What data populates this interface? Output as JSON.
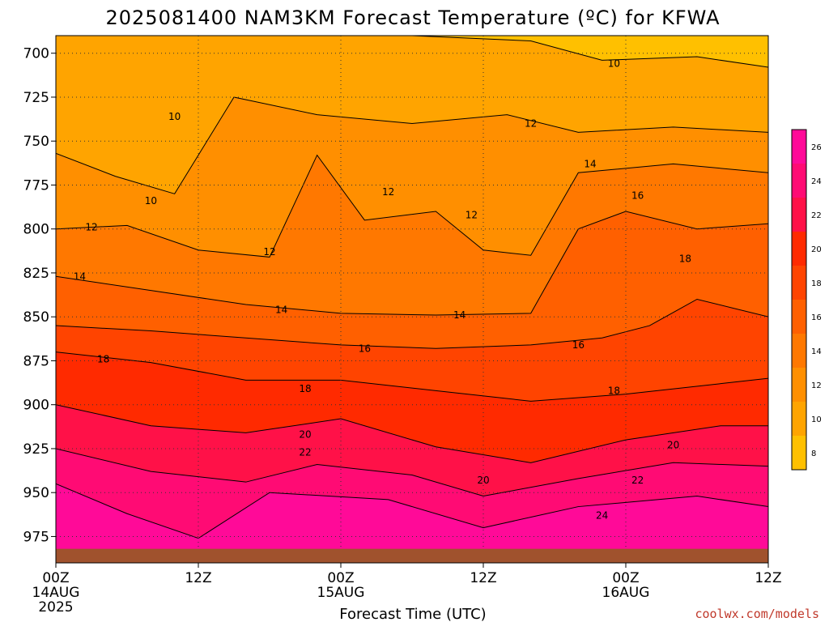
{
  "chart_data": {
    "type": "heatmap",
    "title": "2025081400 NAM3KM Forecast Temperature (ºC) for KFWA",
    "xlabel": "Forecast Time (UTC)",
    "ylabel": "",
    "x_ticks": [
      {
        "hour": 0,
        "label": "00Z",
        "sub": "14AUG",
        "sub2": "2025"
      },
      {
        "hour": 12,
        "label": "12Z",
        "sub": "",
        "sub2": ""
      },
      {
        "hour": 24,
        "label": "00Z",
        "sub": "15AUG",
        "sub2": ""
      },
      {
        "hour": 36,
        "label": "12Z",
        "sub": "",
        "sub2": ""
      },
      {
        "hour": 48,
        "label": "00Z",
        "sub": "16AUG",
        "sub2": ""
      },
      {
        "hour": 60,
        "label": "12Z",
        "sub": "",
        "sub2": ""
      }
    ],
    "xlim": [
      0,
      60
    ],
    "y_ticks": [
      700,
      725,
      750,
      775,
      800,
      825,
      850,
      875,
      900,
      925,
      950,
      975
    ],
    "ylim": [
      990,
      690
    ],
    "ground_level_hpa": 982,
    "grid": true,
    "colorbar": {
      "position": "right",
      "levels": [
        8,
        10,
        12,
        14,
        16,
        18,
        20,
        22,
        24,
        26
      ],
      "colors": [
        "#ffc000",
        "#ffa400",
        "#ff8f00",
        "#ff7800",
        "#ff6000",
        "#ff4400",
        "#ff2a00",
        "#ff1148",
        "#ff0b74",
        "#ff0a98"
      ]
    },
    "contour_labels": [
      {
        "value": "10",
        "hour": 10,
        "p": 736
      },
      {
        "value": "10",
        "hour": 8,
        "p": 784
      },
      {
        "value": "10",
        "hour": 47,
        "p": 706
      },
      {
        "value": "12",
        "hour": 3,
        "p": 799
      },
      {
        "value": "12",
        "hour": 18,
        "p": 813
      },
      {
        "value": "12",
        "hour": 28,
        "p": 779
      },
      {
        "value": "12",
        "hour": 35,
        "p": 792
      },
      {
        "value": "12",
        "hour": 40,
        "p": 740
      },
      {
        "value": "14",
        "hour": 2,
        "p": 827
      },
      {
        "value": "14",
        "hour": 19,
        "p": 846
      },
      {
        "value": "14",
        "hour": 34,
        "p": 849
      },
      {
        "value": "14",
        "hour": 45,
        "p": 763
      },
      {
        "value": "16",
        "hour": 26,
        "p": 868
      },
      {
        "value": "16",
        "hour": 44,
        "p": 866
      },
      {
        "value": "16",
        "hour": 49,
        "p": 781
      },
      {
        "value": "18",
        "hour": 4,
        "p": 874
      },
      {
        "value": "18",
        "hour": 21,
        "p": 891
      },
      {
        "value": "18",
        "hour": 47,
        "p": 892
      },
      {
        "value": "18",
        "hour": 53,
        "p": 817
      },
      {
        "value": "20",
        "hour": 21,
        "p": 917
      },
      {
        "value": "20",
        "hour": 36,
        "p": 943
      },
      {
        "value": "20",
        "hour": 52,
        "p": 923
      },
      {
        "value": "22",
        "hour": 21,
        "p": 927
      },
      {
        "value": "22",
        "hour": 49,
        "p": 943
      },
      {
        "value": "24",
        "hour": 46,
        "p": 963
      }
    ],
    "bands": [
      {
        "level": 10,
        "pts": [
          [
            0,
            690
          ],
          [
            12,
            690
          ],
          [
            20,
            690
          ],
          [
            30,
            690
          ],
          [
            40,
            693
          ],
          [
            46,
            704
          ],
          [
            54,
            702
          ],
          [
            60,
            708
          ]
        ]
      },
      {
        "level": 12,
        "pts": [
          [
            0,
            757
          ],
          [
            5,
            770
          ],
          [
            10,
            780
          ],
          [
            15,
            725
          ],
          [
            22,
            735
          ],
          [
            30,
            740
          ],
          [
            38,
            735
          ],
          [
            44,
            745
          ],
          [
            52,
            742
          ],
          [
            60,
            745
          ]
        ]
      },
      {
        "level": 14,
        "pts": [
          [
            0,
            800
          ],
          [
            6,
            798
          ],
          [
            12,
            812
          ],
          [
            18,
            816
          ],
          [
            22,
            758
          ],
          [
            26,
            795
          ],
          [
            32,
            790
          ],
          [
            36,
            812
          ],
          [
            40,
            815
          ],
          [
            44,
            768
          ],
          [
            52,
            763
          ],
          [
            60,
            768
          ]
        ]
      },
      {
        "level": 16,
        "pts": [
          [
            0,
            827
          ],
          [
            8,
            835
          ],
          [
            16,
            843
          ],
          [
            24,
            848
          ],
          [
            32,
            849
          ],
          [
            40,
            848
          ],
          [
            44,
            800
          ],
          [
            48,
            790
          ],
          [
            54,
            800
          ],
          [
            60,
            797
          ]
        ]
      },
      {
        "level": 18,
        "pts": [
          [
            0,
            855
          ],
          [
            8,
            858
          ],
          [
            16,
            862
          ],
          [
            24,
            866
          ],
          [
            32,
            868
          ],
          [
            40,
            866
          ],
          [
            46,
            862
          ],
          [
            50,
            855
          ],
          [
            54,
            840
          ],
          [
            60,
            850
          ]
        ]
      },
      {
        "level": 20,
        "pts": [
          [
            0,
            870
          ],
          [
            8,
            876
          ],
          [
            16,
            886
          ],
          [
            24,
            886
          ],
          [
            32,
            892
          ],
          [
            40,
            898
          ],
          [
            48,
            894
          ],
          [
            56,
            888
          ],
          [
            60,
            885
          ]
        ]
      },
      {
        "level": 22,
        "pts": [
          [
            0,
            900
          ],
          [
            8,
            912
          ],
          [
            16,
            916
          ],
          [
            24,
            908
          ],
          [
            32,
            924
          ],
          [
            40,
            933
          ],
          [
            48,
            920
          ],
          [
            56,
            912
          ],
          [
            60,
            912
          ]
        ]
      },
      {
        "level": 24,
        "pts": [
          [
            0,
            925
          ],
          [
            8,
            938
          ],
          [
            16,
            944
          ],
          [
            22,
            934
          ],
          [
            30,
            940
          ],
          [
            36,
            952
          ],
          [
            44,
            942
          ],
          [
            52,
            933
          ],
          [
            60,
            935
          ]
        ]
      },
      {
        "level": 26,
        "pts": [
          [
            0,
            945
          ],
          [
            6,
            962
          ],
          [
            12,
            976
          ],
          [
            18,
            950
          ],
          [
            28,
            954
          ],
          [
            36,
            970
          ],
          [
            44,
            958
          ],
          [
            54,
            952
          ],
          [
            60,
            958
          ]
        ]
      }
    ],
    "annotations": {
      "credit": "coolwx.com/models"
    }
  }
}
